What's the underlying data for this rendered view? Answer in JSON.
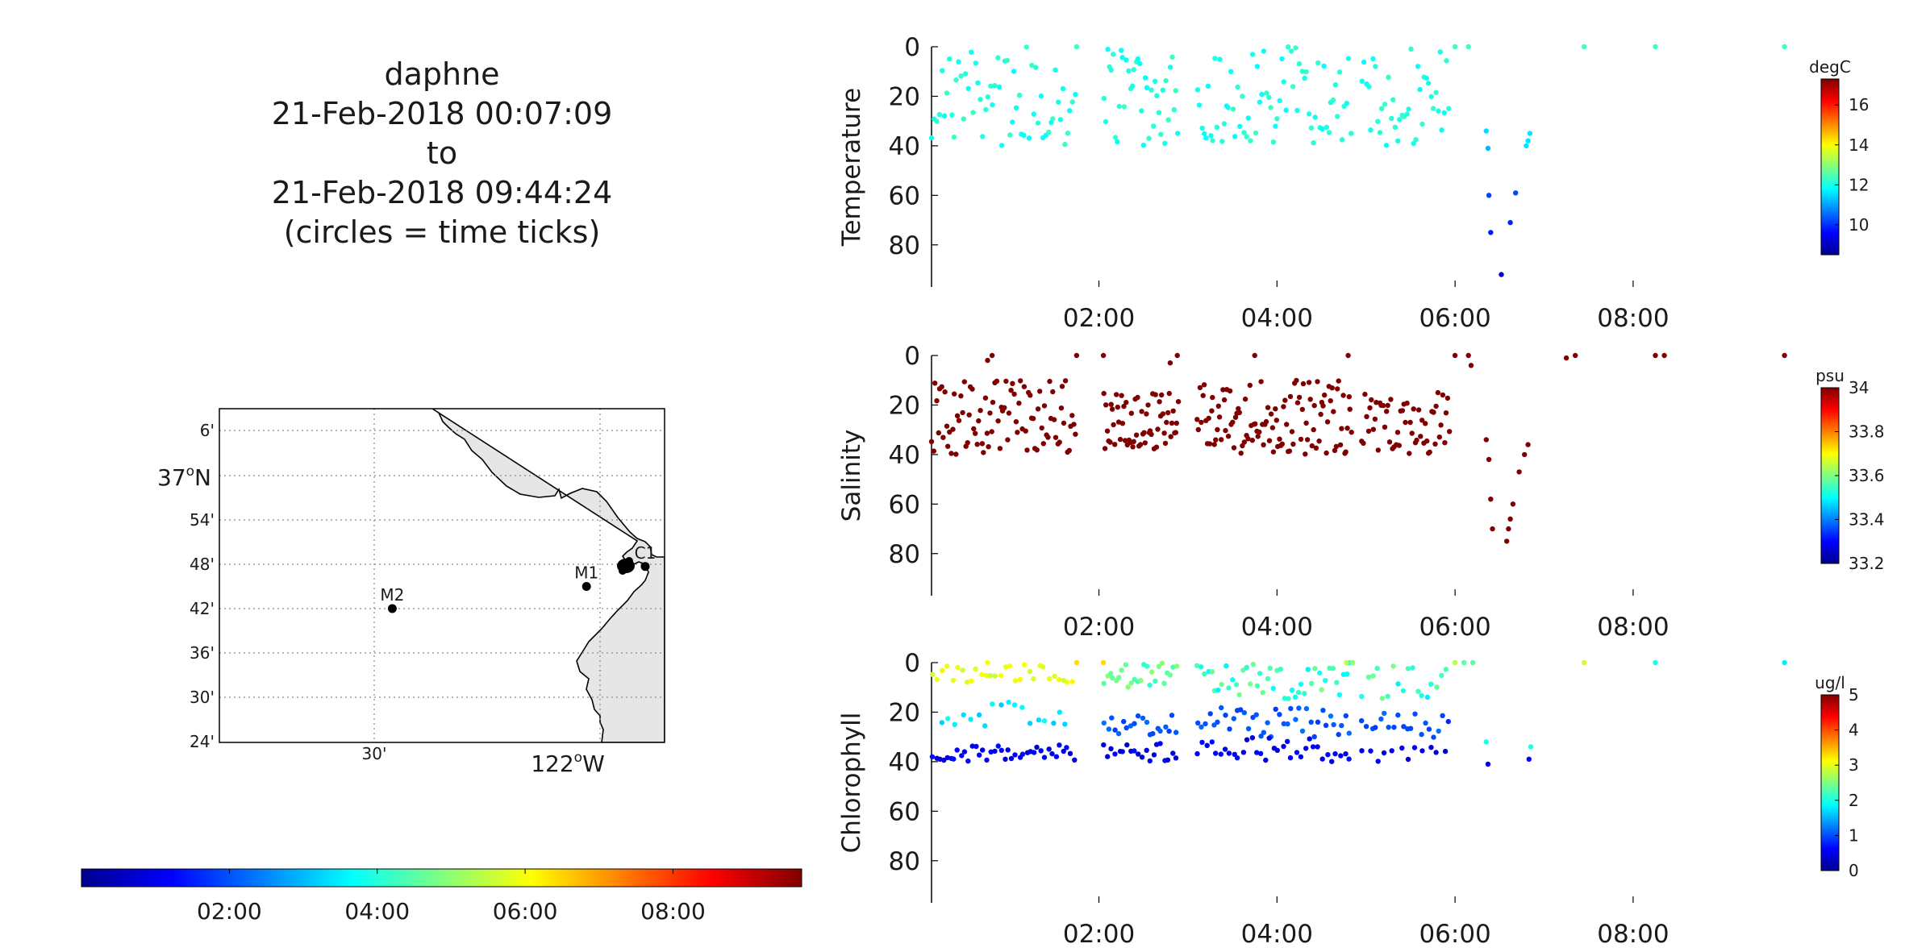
{
  "title_block": {
    "line1": "daphne",
    "line2": "21-Feb-2018 00:07:09",
    "line3": "to",
    "line4": "21-Feb-2018 09:44:24",
    "line5": "(circles = time ticks)"
  },
  "map": {
    "lat_labels": [
      "6'",
      "37",
      "54'",
      "48'",
      "42'",
      "36'",
      "30'",
      "24'"
    ],
    "lat_deg_suffix": "o",
    "lat_hemisphere": "N",
    "lon_labels": [
      "30'",
      "122",
      "o",
      "W"
    ],
    "stations": [
      {
        "name": "M2",
        "lon": -122.46,
        "lat": 36.7
      },
      {
        "name": "M1",
        "lon": -122.03,
        "lat": 36.75
      },
      {
        "name": "C1",
        "lon": -121.9,
        "lat": 36.795
      }
    ],
    "land_color": "#e6e6e6",
    "vehicle_track_color": "#000000"
  },
  "time_colorbar": {
    "tick_labels": [
      "02:00",
      "04:00",
      "06:00",
      "08:00"
    ],
    "colormap": "jet"
  },
  "chart_data": [
    {
      "type": "scatter",
      "ylabel": "Temperature",
      "units": "degC",
      "x_tick_labels": [
        "02:00",
        "04:00",
        "06:00",
        "08:00"
      ],
      "x_tick_hours": [
        2,
        4,
        6,
        8
      ],
      "xlim_hours": [
        0.12,
        9.74
      ],
      "ylim": [
        0,
        97
      ],
      "y_reversed": true,
      "y_ticks": [
        0,
        20,
        40,
        60,
        80
      ],
      "colorbar": {
        "range": [
          8.5,
          17.3
        ],
        "ticks": [
          10,
          12,
          14,
          16
        ],
        "tick_labels": [
          "10",
          "12",
          "14",
          "16"
        ]
      },
      "segments": [
        {
          "t0": 0.12,
          "t1": 1.75,
          "n": 60,
          "zmin": 0,
          "zmax": 40,
          "vlo": 11.8,
          "vhi": 12.3
        },
        {
          "t0": 1.75,
          "t1": 1.75,
          "n": 1,
          "zmin": 0,
          "zmax": 0,
          "vlo": 12.3,
          "vhi": 12.3
        },
        {
          "t0": 2.05,
          "t1": 2.9,
          "n": 40,
          "zmin": 0,
          "zmax": 40,
          "vlo": 11.8,
          "vhi": 12.3
        },
        {
          "t0": 3.1,
          "t1": 4.85,
          "n": 70,
          "zmin": 0,
          "zmax": 40,
          "vlo": 11.8,
          "vhi": 12.3
        },
        {
          "t0": 4.95,
          "t1": 5.95,
          "n": 40,
          "zmin": 0,
          "zmax": 40,
          "vlo": 11.8,
          "vhi": 12.3
        }
      ],
      "points": [
        [
          6.35,
          34,
          11.5
        ],
        [
          6.37,
          41,
          11.2
        ],
        [
          6.38,
          60,
          10.2
        ],
        [
          6.4,
          75,
          9.8
        ],
        [
          6.52,
          92,
          9.2
        ],
        [
          6.62,
          71,
          9.9
        ],
        [
          6.68,
          59,
          10.2
        ],
        [
          6.8,
          40,
          11.6
        ],
        [
          6.84,
          35,
          11.6
        ],
        [
          6.82,
          38,
          11.6
        ],
        [
          6.0,
          0,
          12.3
        ],
        [
          6.15,
          0,
          12.3
        ],
        [
          7.45,
          0,
          12.3
        ],
        [
          8.25,
          0,
          12.3
        ],
        [
          9.7,
          0,
          12.3
        ]
      ]
    },
    {
      "type": "scatter",
      "ylabel": "Salinity",
      "units": "psu",
      "x_tick_labels": [
        "02:00",
        "04:00",
        "06:00",
        "08:00"
      ],
      "x_tick_hours": [
        2,
        4,
        6,
        8
      ],
      "xlim_hours": [
        0.12,
        9.74
      ],
      "ylim": [
        0,
        97
      ],
      "y_reversed": true,
      "y_ticks": [
        0,
        20,
        40,
        60,
        80
      ],
      "colorbar": {
        "range": [
          33.2,
          34.0
        ],
        "ticks": [
          33.2,
          33.4,
          33.6,
          33.8,
          34.0
        ],
        "tick_labels": [
          "33.2",
          "33.4",
          "33.6",
          "33.8",
          "34"
        ]
      },
      "segments": [
        {
          "t0": 0.12,
          "t1": 1.75,
          "n": 90,
          "zmin": 10,
          "zmax": 40,
          "vlo": 34.0,
          "vhi": 34.0
        },
        {
          "t0": 2.05,
          "t1": 2.9,
          "n": 60,
          "zmin": 15,
          "zmax": 38,
          "vlo": 34.0,
          "vhi": 34.0
        },
        {
          "t0": 3.1,
          "t1": 4.85,
          "n": 110,
          "zmin": 10,
          "zmax": 40,
          "vlo": 34.0,
          "vhi": 34.0
        },
        {
          "t0": 4.95,
          "t1": 5.95,
          "n": 55,
          "zmin": 15,
          "zmax": 40,
          "vlo": 34.0,
          "vhi": 34.0
        }
      ],
      "points": [
        [
          6.35,
          34,
          34.0
        ],
        [
          6.38,
          42,
          34.0
        ],
        [
          6.4,
          58,
          34.0
        ],
        [
          6.42,
          70,
          34.0
        ],
        [
          6.58,
          75,
          34.0
        ],
        [
          6.6,
          70,
          34.0
        ],
        [
          6.62,
          66,
          34.0
        ],
        [
          6.65,
          60,
          34.0
        ],
        [
          6.72,
          47,
          34.0
        ],
        [
          6.78,
          40,
          34.0
        ],
        [
          6.82,
          36,
          34.0
        ],
        [
          0.75,
          2,
          34.0
        ],
        [
          0.8,
          0,
          34.0
        ],
        [
          1.75,
          0,
          34.0
        ],
        [
          2.05,
          0,
          34.0
        ],
        [
          2.8,
          3,
          34.0
        ],
        [
          2.88,
          0,
          34.0
        ],
        [
          3.75,
          0,
          34.0
        ],
        [
          4.8,
          0,
          34.0
        ],
        [
          6.0,
          0,
          34.0
        ],
        [
          6.15,
          0,
          34.0
        ],
        [
          6.18,
          4,
          34.0
        ],
        [
          7.25,
          1,
          34.0
        ],
        [
          7.35,
          0,
          34.0
        ],
        [
          8.25,
          0,
          34.0
        ],
        [
          8.35,
          0,
          34.0
        ],
        [
          9.7,
          0,
          34.0
        ]
      ]
    },
    {
      "type": "scatter",
      "ylabel": "Chlorophyll",
      "units": "ug/l",
      "x_tick_labels": [
        "02:00",
        "04:00",
        "06:00",
        "08:00"
      ],
      "x_tick_hours": [
        2,
        4,
        6,
        8
      ],
      "xlim_hours": [
        0.12,
        9.74
      ],
      "ylim": [
        0,
        97
      ],
      "y_reversed": true,
      "y_ticks": [
        0,
        20,
        40,
        60,
        80
      ],
      "colorbar": {
        "range": [
          0,
          5
        ],
        "ticks": [
          0,
          1,
          2,
          3,
          4,
          5
        ],
        "tick_labels": [
          "0",
          "1",
          "2",
          "3",
          "4",
          "5"
        ]
      },
      "segments": [
        {
          "t0": 0.12,
          "t1": 1.75,
          "n": 30,
          "zmin": 0,
          "zmax": 8,
          "vlo": 2.8,
          "vhi": 3.2
        },
        {
          "t0": 0.2,
          "t1": 1.7,
          "n": 18,
          "zmin": 16,
          "zmax": 26,
          "vlo": 1.6,
          "vhi": 2.0
        },
        {
          "t0": 0.12,
          "t1": 1.75,
          "n": 40,
          "zmin": 33,
          "zmax": 40,
          "vlo": 0.4,
          "vhi": 0.7
        },
        {
          "t0": 2.05,
          "t1": 2.9,
          "n": 25,
          "zmin": 0,
          "zmax": 10,
          "vlo": 2.0,
          "vhi": 2.6
        },
        {
          "t0": 2.05,
          "t1": 2.9,
          "n": 20,
          "zmin": 18,
          "zmax": 30,
          "vlo": 0.9,
          "vhi": 1.2
        },
        {
          "t0": 2.05,
          "t1": 2.9,
          "n": 20,
          "zmin": 32,
          "zmax": 40,
          "vlo": 0.4,
          "vhi": 0.7
        },
        {
          "t0": 3.1,
          "t1": 4.85,
          "n": 45,
          "zmin": 0,
          "zmax": 15,
          "vlo": 1.8,
          "vhi": 2.5
        },
        {
          "t0": 3.1,
          "t1": 4.85,
          "n": 40,
          "zmin": 18,
          "zmax": 30,
          "vlo": 0.9,
          "vhi": 1.2
        },
        {
          "t0": 3.1,
          "t1": 4.85,
          "n": 35,
          "zmin": 30,
          "zmax": 40,
          "vlo": 0.4,
          "vhi": 0.7
        },
        {
          "t0": 4.95,
          "t1": 5.95,
          "n": 18,
          "zmin": 0,
          "zmax": 15,
          "vlo": 1.8,
          "vhi": 2.5
        },
        {
          "t0": 4.95,
          "t1": 5.95,
          "n": 20,
          "zmin": 20,
          "zmax": 32,
          "vlo": 0.8,
          "vhi": 1.2
        },
        {
          "t0": 4.95,
          "t1": 5.95,
          "n": 12,
          "zmin": 34,
          "zmax": 40,
          "vlo": 0.4,
          "vhi": 0.7
        }
      ],
      "points": [
        [
          6.0,
          0,
          2.8
        ],
        [
          6.1,
          0,
          2.3
        ],
        [
          6.2,
          0,
          2.3
        ],
        [
          6.35,
          32,
          2.0
        ],
        [
          6.37,
          41,
          0.6
        ],
        [
          6.85,
          34,
          2.0
        ],
        [
          6.83,
          39,
          0.6
        ],
        [
          7.45,
          0,
          2.9
        ],
        [
          8.25,
          0,
          2.0
        ],
        [
          9.7,
          0,
          1.8
        ],
        [
          0.75,
          0,
          3.1
        ],
        [
          1.75,
          0,
          3.3
        ],
        [
          2.05,
          0,
          3.3
        ],
        [
          4.78,
          0,
          2.8
        ],
        [
          4.85,
          0,
          2.6
        ]
      ]
    }
  ]
}
